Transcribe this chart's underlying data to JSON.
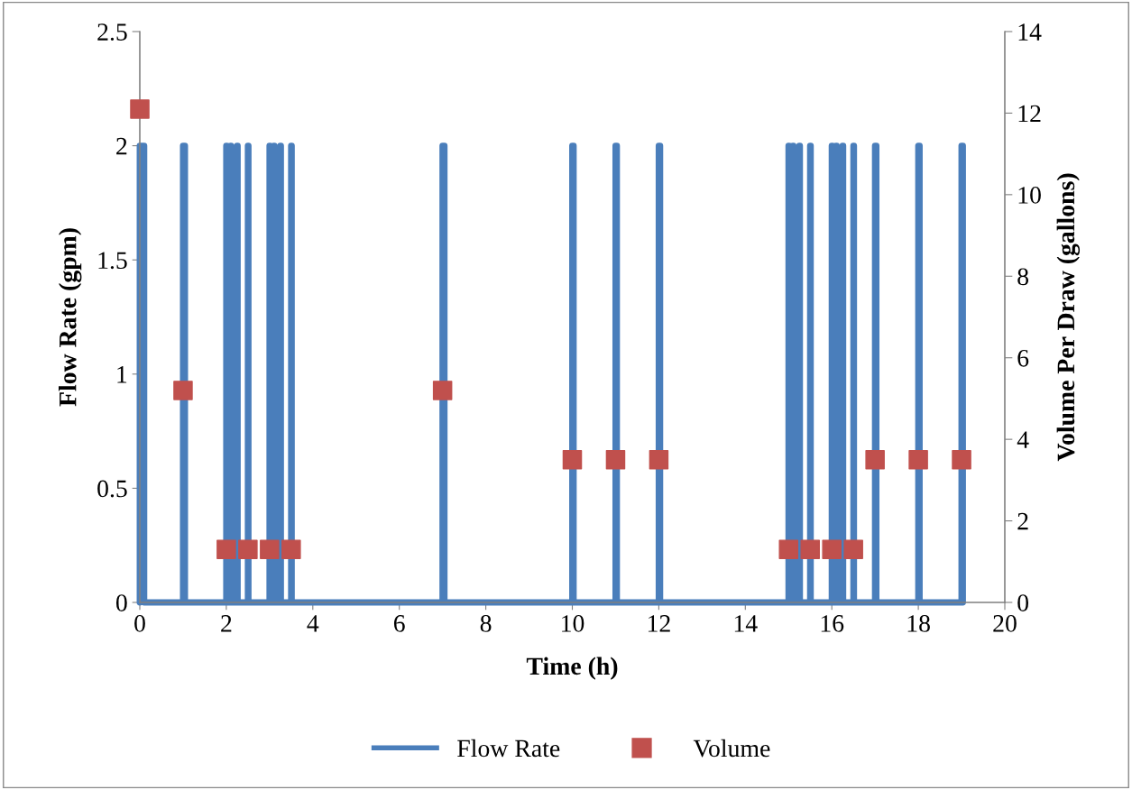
{
  "chart_data": {
    "type": "line",
    "xlabel": "Time (h)",
    "ylabel": "Flow Rate (gpm)",
    "y2label": "Volume Per Draw (gallons)",
    "xlim": [
      0,
      20
    ],
    "xticks": [
      0,
      2,
      4,
      6,
      8,
      10,
      12,
      14,
      16,
      18,
      20
    ],
    "ylim": [
      0,
      2.5
    ],
    "yticks": [
      0,
      0.5,
      1,
      1.5,
      2,
      2.5
    ],
    "y2lim": [
      0,
      14
    ],
    "y2ticks": [
      0,
      2,
      4,
      6,
      8,
      10,
      12,
      14
    ],
    "grid": false,
    "legend": "bottom",
    "series": [
      {
        "name": "Flow Rate",
        "color": "#4a7ebb",
        "marker": "none",
        "line_style": "solid",
        "x": [
          0,
          0,
          0.1,
          0.1,
          1,
          1,
          1.043,
          1.043,
          2,
          2,
          2.011,
          2.011,
          2.1,
          2.1,
          2.111,
          2.111,
          2.25,
          2.25,
          2.261,
          2.261,
          2.5,
          2.5,
          2.511,
          2.511,
          3,
          3,
          3.011,
          3.011,
          3.1,
          3.1,
          3.111,
          3.111,
          3.25,
          3.25,
          3.261,
          3.261,
          3.5,
          3.5,
          3.511,
          3.511,
          7,
          7,
          7.043,
          7.043,
          10,
          10,
          10.029,
          10.029,
          11,
          11,
          11.029,
          11.029,
          12,
          12,
          12.029,
          12.029,
          15,
          15,
          15.011,
          15.011,
          15.1,
          15.1,
          15.111,
          15.111,
          15.25,
          15.25,
          15.261,
          15.261,
          15.5,
          15.5,
          15.511,
          15.511,
          16,
          16,
          16.011,
          16.011,
          16.1,
          16.1,
          16.111,
          16.111,
          16.25,
          16.25,
          16.261,
          16.261,
          16.5,
          16.5,
          16.511,
          16.511,
          17,
          17,
          17.029,
          17.029,
          18,
          18,
          18.029,
          18.029,
          19,
          19,
          19.029,
          19.029
        ],
        "values": [
          0,
          2,
          2,
          0,
          0,
          2,
          2,
          0,
          0,
          2,
          2,
          0,
          0,
          2,
          2,
          0,
          0,
          2,
          2,
          0,
          0,
          2,
          2,
          0,
          0,
          2,
          2,
          0,
          0,
          2,
          2,
          0,
          0,
          2,
          2,
          0,
          0,
          2,
          2,
          0,
          0,
          2,
          2,
          0,
          0,
          2,
          2,
          0,
          0,
          2,
          2,
          0,
          0,
          2,
          2,
          0,
          0,
          2,
          2,
          0,
          0,
          2,
          2,
          0,
          0,
          2,
          2,
          0,
          0,
          2,
          2,
          0,
          0,
          2,
          2,
          0,
          0,
          2,
          2,
          0,
          0,
          2,
          2,
          0,
          0,
          2,
          2,
          0,
          0,
          2,
          2,
          0,
          0,
          2,
          2,
          0,
          0,
          2,
          2,
          0
        ]
      },
      {
        "name": "Volume",
        "type": "scatter",
        "axis": "y2",
        "color": "#c0504d",
        "marker": "square",
        "x": [
          0,
          1,
          2,
          2.1,
          2.25,
          2.5,
          3,
          3.1,
          3.25,
          3.5,
          7,
          10,
          11,
          12,
          15,
          15.1,
          15.25,
          15.5,
          16,
          16.1,
          16.25,
          16.5,
          17,
          18,
          19
        ],
        "values": [
          12.1,
          5.2,
          1.3,
          null,
          null,
          1.3,
          1.3,
          null,
          null,
          1.3,
          5.2,
          3.5,
          3.5,
          3.5,
          1.3,
          null,
          null,
          1.3,
          1.3,
          null,
          null,
          1.3,
          3.5,
          3.5,
          3.5
        ]
      }
    ]
  }
}
